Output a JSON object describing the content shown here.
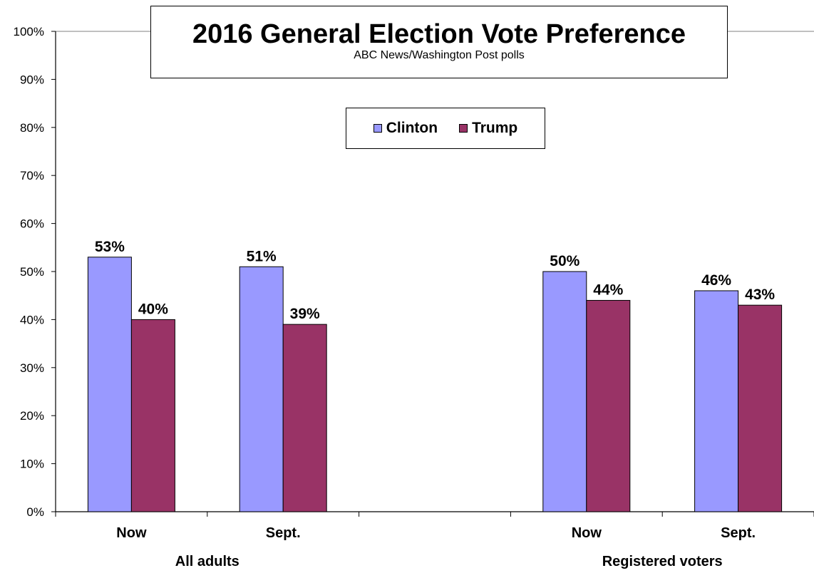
{
  "chart_data": {
    "type": "bar",
    "title": "2016 General Election Vote Preference",
    "subtitle": "ABC News/Washington  Post polls",
    "categories": [
      "Now",
      "Sept.",
      "Now",
      "Sept."
    ],
    "groups": [
      {
        "label": "All adults",
        "categories": [
          0,
          1
        ]
      },
      {
        "label": "Registered voters",
        "categories": [
          2,
          3
        ]
      }
    ],
    "series": [
      {
        "name": "Clinton",
        "values": [
          53,
          51,
          50,
          46
        ],
        "labels": [
          "53%",
          "51%",
          "50%",
          "46%"
        ],
        "color": "#9999ff"
      },
      {
        "name": "Trump",
        "values": [
          40,
          39,
          44,
          43
        ],
        "labels": [
          "40%",
          "39%",
          "44%",
          "43%"
        ],
        "color": "#993366"
      }
    ],
    "ylim": [
      0,
      100
    ],
    "yticks": [
      "0%",
      "10%",
      "20%",
      "30%",
      "40%",
      "50%",
      "60%",
      "70%",
      "80%",
      "90%",
      "100%"
    ],
    "xlabel": "",
    "ylabel": "",
    "grid": false,
    "legend_position": "top-center"
  }
}
